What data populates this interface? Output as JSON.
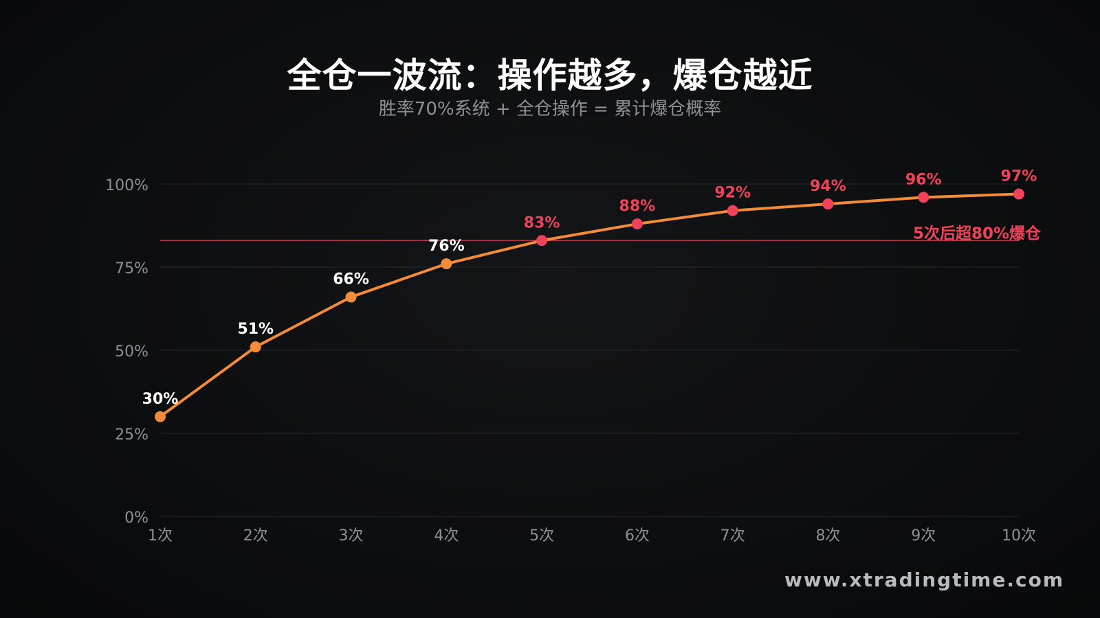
{
  "title": "全仓一波流：操作越多，爆仓越近",
  "subtitle": "胜率70%系统 + 全仓操作 = 累计爆仓概率",
  "watermark": "www.xtradingtime.com",
  "colors": {
    "background": "#0b0c0e",
    "line": "#f28c3a",
    "point_low": "#f28c3a",
    "point_high": "#f0435a",
    "label_low": "#ffffff",
    "label_high": "#f0435a",
    "threshold": "#b8324a",
    "grid": "#25272b",
    "tick": "#8f9196"
  },
  "chart_data": {
    "type": "line",
    "categories": [
      "1次",
      "2次",
      "3次",
      "4次",
      "5次",
      "6次",
      "7次",
      "8次",
      "9次",
      "10次"
    ],
    "values": [
      30,
      51,
      66,
      76,
      83,
      88,
      92,
      94,
      96,
      97
    ],
    "data_labels": [
      "30%",
      "51%",
      "66%",
      "76%",
      "83%",
      "88%",
      "92%",
      "94%",
      "96%",
      "97%"
    ],
    "ylim": [
      0,
      100
    ],
    "yticks": [
      0,
      25,
      50,
      75,
      100
    ],
    "ytick_labels": [
      "0%",
      "25%",
      "50%",
      "75%",
      "100%"
    ],
    "grid": true,
    "highlight_from_index": 4,
    "threshold": {
      "value": 83,
      "label": "5次后超80%爆仓"
    }
  }
}
